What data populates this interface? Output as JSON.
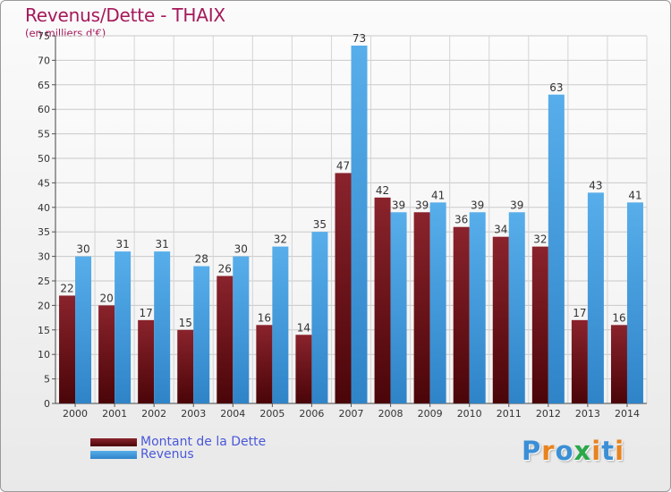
{
  "header": {
    "title": "Revenus/Dette - THAIX",
    "subtitle": "(en milliers d'€)"
  },
  "legend": {
    "items": [
      {
        "label": "Montant de la Dette",
        "color": "#7a1a22"
      },
      {
        "label": "Revenus",
        "color": "#4aa3e3"
      }
    ]
  },
  "brand": {
    "letters": [
      "P",
      "r",
      "o",
      "x",
      "i",
      "t",
      "i"
    ],
    "colors": [
      "#3a8fd6",
      "#e8831f",
      "#3a8fd6",
      "#2aa84a",
      "#e8831f",
      "#3a8fd6",
      "#e8831f"
    ]
  },
  "chart_data": {
    "type": "bar",
    "title": "Revenus/Dette - THAIX",
    "subtitle": "(en milliers d'€)",
    "categories": [
      "2000",
      "2001",
      "2002",
      "2003",
      "2004",
      "2005",
      "2006",
      "2007",
      "2008",
      "2009",
      "2010",
      "2011",
      "2012",
      "2013",
      "2014"
    ],
    "series": [
      {
        "name": "Montant de la Dette",
        "color": "#7a1a22",
        "values": [
          22,
          20,
          17,
          15,
          26,
          16,
          14,
          47,
          42,
          39,
          36,
          34,
          32,
          17,
          16
        ]
      },
      {
        "name": "Revenus",
        "color": "#4aa3e3",
        "values": [
          30,
          31,
          31,
          28,
          30,
          32,
          35,
          73,
          39,
          41,
          39,
          39,
          63,
          43,
          41
        ]
      }
    ],
    "ylim": [
      0,
      75
    ],
    "yticks": [
      0,
      5,
      10,
      15,
      20,
      25,
      30,
      35,
      40,
      45,
      50,
      55,
      60,
      65,
      70,
      75
    ],
    "grid": true,
    "legend_position": "bottom-left",
    "data_labels": true
  }
}
